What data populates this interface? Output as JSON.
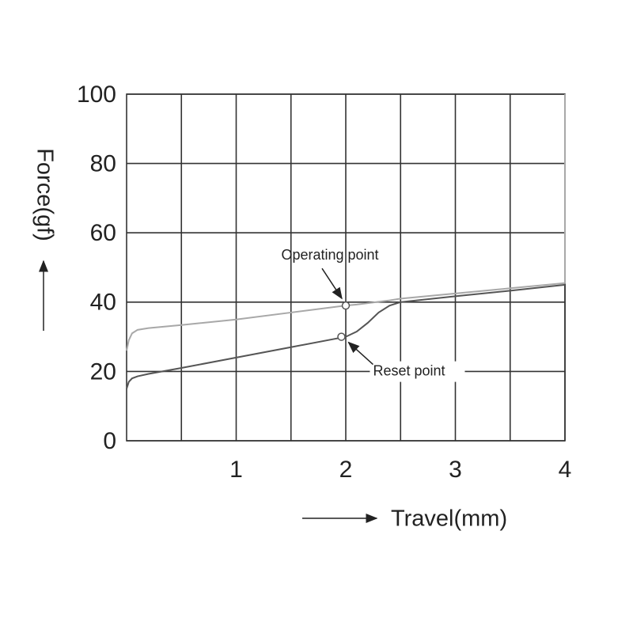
{
  "chart_data": {
    "type": "line",
    "x_label": "Travel(mm)",
    "y_label": "Force(gf)",
    "xlim": [
      0,
      4
    ],
    "ylim": [
      0,
      100
    ],
    "xticks": [
      1,
      2,
      3,
      4
    ],
    "minor_xticks": [
      0.5,
      1.5,
      2.5,
      3.5
    ],
    "yticks": [
      0,
      20,
      40,
      60,
      80,
      100
    ],
    "grid": true,
    "x": [
      0,
      0.02,
      0.05,
      0.1,
      0.2,
      0.5,
      1,
      1.5,
      2,
      2.1,
      2.2,
      2.3,
      2.4,
      2.5,
      3,
      3.5,
      4,
      4
    ],
    "series": [
      {
        "color": "#a8a8a8",
        "values": [
          26,
          29,
          31,
          32,
          32.5,
          33.4,
          35,
          37,
          39,
          39.3,
          39.7,
          40.1,
          40.5,
          41,
          42.5,
          44,
          45.5,
          100
        ]
      },
      {
        "color": "#555555",
        "values": [
          15,
          17,
          18,
          18.6,
          19.3,
          21,
          24,
          27,
          30,
          31.5,
          34,
          37,
          39,
          40,
          41.7,
          43.3,
          45,
          45
        ]
      }
    ],
    "points": [
      {
        "label": "Operating point",
        "x": 2,
        "y": 39
      },
      {
        "label": "Reset point",
        "x": 1.96,
        "y": 30
      }
    ]
  }
}
